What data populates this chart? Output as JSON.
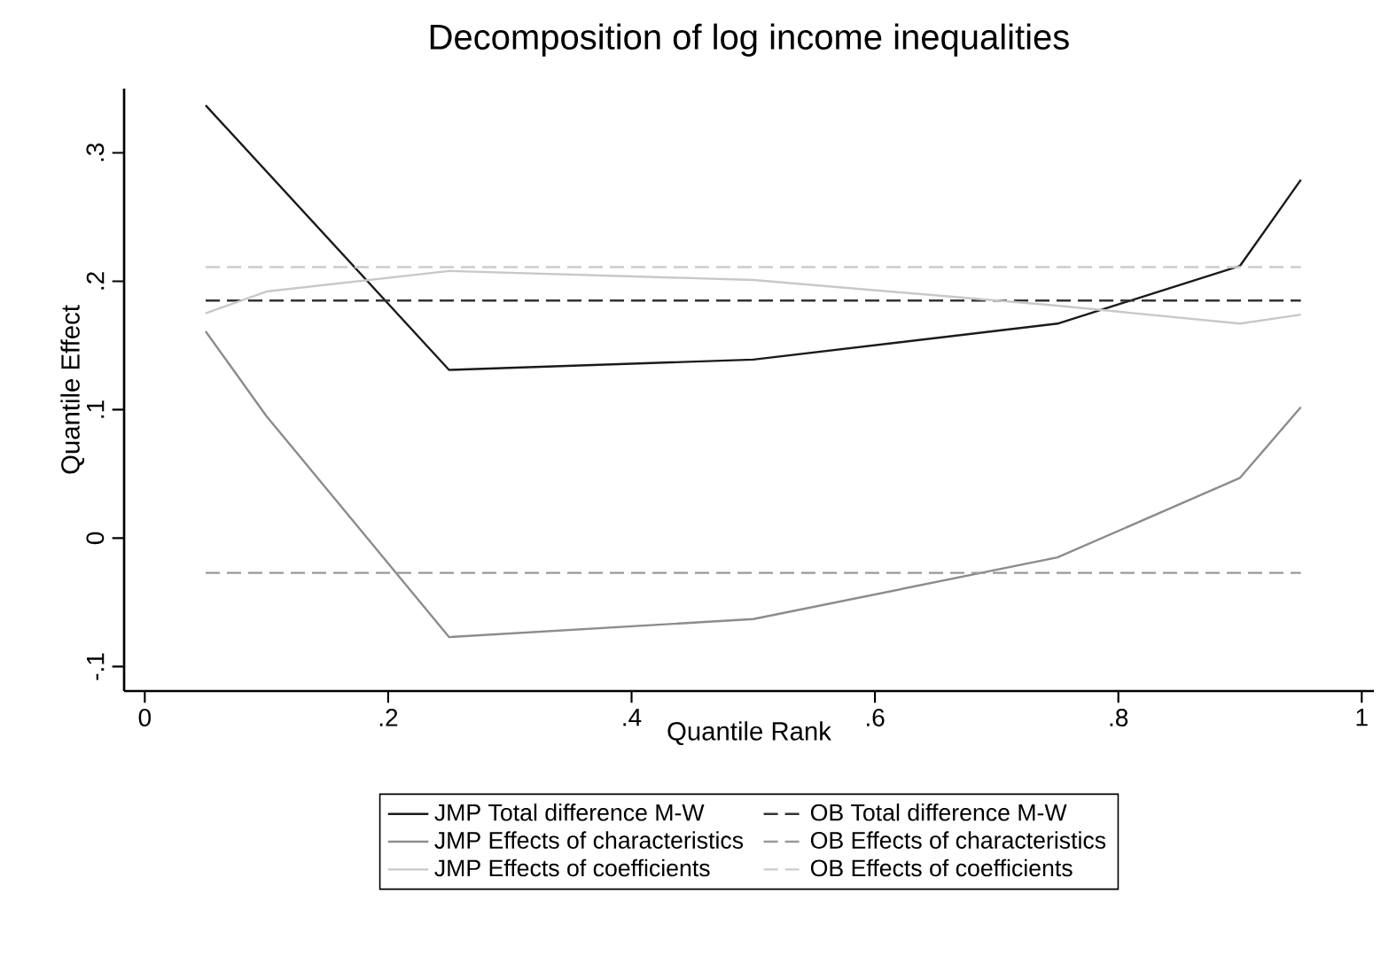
{
  "chart_data": {
    "type": "line",
    "title": "Decomposition of log income inequalities",
    "xlabel": "Quantile Rank",
    "ylabel": "Quantile Effect",
    "xlim": [
      -0.017,
      1.01
    ],
    "ylim": [
      -0.119,
      0.35
    ],
    "xticks": [
      0,
      {
        "value": 0.2,
        "label": ".2"
      },
      {
        "value": 0.4,
        "label": ".4"
      },
      {
        "value": 0.6,
        "label": ".6"
      },
      {
        "value": 0.8,
        "label": ".8"
      },
      1
    ],
    "yticks": [
      {
        "value": -0.1,
        "label": "-.1"
      },
      0,
      {
        "value": 0.1,
        "label": ".1"
      },
      {
        "value": 0.2,
        "label": ".2"
      },
      {
        "value": 0.3,
        "label": ".3"
      }
    ],
    "legend": "bottom",
    "grid": false,
    "series": [
      {
        "name": "JMP Total difference M-W",
        "color": "#1a1a1a",
        "line_style": "solid",
        "x": [
          0.05,
          0.25,
          0.5,
          0.75,
          0.9,
          0.95
        ],
        "values": [
          0.337,
          0.131,
          0.139,
          0.167,
          0.212,
          0.279
        ]
      },
      {
        "name": "OB Total difference M-W",
        "color": "#333333",
        "line_style": "dashed",
        "x": [
          0.05,
          0.95
        ],
        "values": [
          0.185,
          0.185
        ]
      },
      {
        "name": "JMP Effects of characteristics",
        "color": "#8c8c8c",
        "line_style": "solid",
        "x": [
          0.05,
          0.1,
          0.25,
          0.5,
          0.75,
          0.9,
          0.95
        ],
        "values": [
          0.161,
          0.095,
          -0.077,
          -0.063,
          -0.015,
          0.047,
          0.102
        ]
      },
      {
        "name": "OB Effects of characteristics",
        "color": "#999999",
        "line_style": "dashed",
        "x": [
          0.05,
          0.95
        ],
        "values": [
          -0.027,
          -0.027
        ]
      },
      {
        "name": "JMP Effects of coefficients",
        "color": "#c8c8c8",
        "line_style": "solid",
        "x": [
          0.05,
          0.1,
          0.25,
          0.5,
          0.75,
          0.9,
          0.95
        ],
        "values": [
          0.175,
          0.192,
          0.208,
          0.201,
          0.181,
          0.167,
          0.174
        ]
      },
      {
        "name": "OB Effects of coefficients",
        "color": "#cccccc",
        "line_style": "dashed",
        "x": [
          0.05,
          0.95
        ],
        "values": [
          0.211,
          0.211
        ]
      }
    ]
  }
}
